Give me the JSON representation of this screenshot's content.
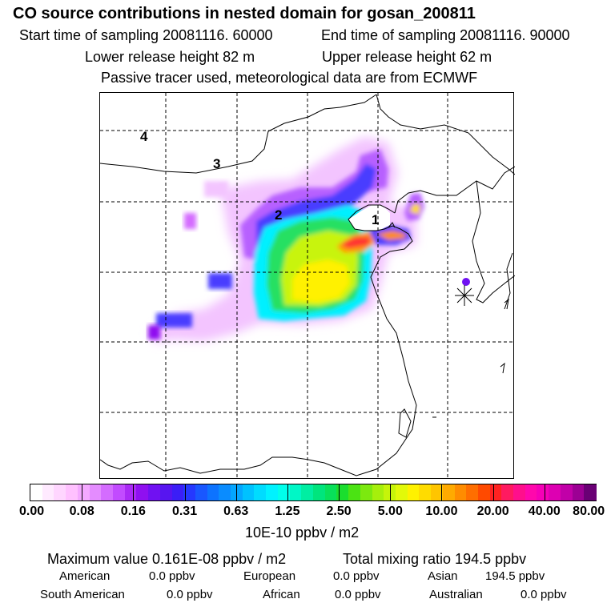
{
  "header": {
    "title": "CO  source contributions in nested domain for gosan_200811",
    "start_time": "Start time of sampling 20081116. 60000",
    "end_time": "End time of sampling 20081116. 90000",
    "lower_release": "Lower release height   82 m",
    "upper_release": "Upper release height   62 m",
    "passive_note": "Passive tracer used, meteorological data are from ECMWF"
  },
  "map": {
    "labels": [
      "4",
      "3",
      "2",
      "1"
    ],
    "receptor_marker": "asterisk"
  },
  "colorbar": {
    "ticks": [
      "0.00",
      "0.08",
      "0.16",
      "0.31",
      "0.63",
      "1.25",
      "2.50",
      "5.00",
      "10.00",
      "20.00",
      "40.00",
      "80.00"
    ],
    "colors": [
      "#ffffff",
      "#ffeaff",
      "#ffd6ff",
      "#ffc1ff",
      "#f4a9ff",
      "#e48cff",
      "#d46cff",
      "#c24bff",
      "#aa2af5",
      "#8f10f0",
      "#7011f2",
      "#5715f0",
      "#3b1ef7",
      "#2538ff",
      "#1957ff",
      "#0d73ff",
      "#0a8cff",
      "#04a6ff",
      "#00c2ff",
      "#00dcff",
      "#00f2ff",
      "#00ffeb",
      "#00f7c6",
      "#00eea2",
      "#00e57d",
      "#08e05a",
      "#1ade2e",
      "#4be313",
      "#7ce90f",
      "#a6ef0c",
      "#c6f40a",
      "#e2f909",
      "#fff100",
      "#ffdc00",
      "#ffc500",
      "#ffaa00",
      "#ff8c00",
      "#ff6e00",
      "#ff4a00",
      "#ff2222",
      "#ff1a60",
      "#ff0f8c",
      "#ff08ac",
      "#f500b7",
      "#dd00b2",
      "#c100a8",
      "#9c0094",
      "#6a0075"
    ],
    "units": "10E-10 ppbv / m2"
  },
  "stats": {
    "max_value": "Maximum value  0.161E-08 ppbv / m2",
    "total_mixing": "Total mixing ratio      194.5 ppbv",
    "rows": [
      [
        {
          "label": "American",
          "value": "0.0 ppbv"
        },
        {
          "label": "European",
          "value": "0.0 ppbv"
        },
        {
          "label": "Asian",
          "value": "194.5 ppbv"
        }
      ],
      [
        {
          "label": "South American",
          "value": "0.0 ppbv"
        },
        {
          "label": "African",
          "value": "0.0 ppbv"
        },
        {
          "label": "Australian",
          "value": "0.0 ppbv"
        }
      ]
    ]
  }
}
